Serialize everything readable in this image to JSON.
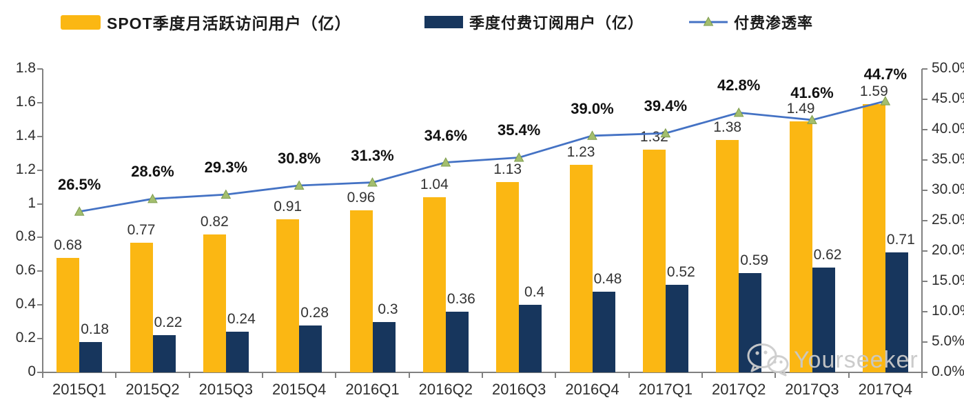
{
  "legend": {
    "items": [
      {
        "label": "SPOT季度月活跃访问用户（亿）",
        "swatch": "bar",
        "color": "#FBB713"
      },
      {
        "label": "季度付费订阅用户（亿）",
        "swatch": "bar",
        "color": "#17365D"
      },
      {
        "label": "付费渗透率",
        "swatch": "line-triangle",
        "color": "#4472C4"
      }
    ]
  },
  "watermark": {
    "text": "Yourseeker",
    "icon": "wechat-icon"
  },
  "chart_data": {
    "type": "bar",
    "subtype": "grouped bars + line on secondary axis",
    "categories": [
      "2015Q1",
      "2015Q2",
      "2015Q3",
      "2015Q4",
      "2016Q1",
      "2016Q2",
      "2016Q3",
      "2016Q4",
      "2017Q1",
      "2017Q2",
      "2017Q3",
      "2017Q4"
    ],
    "series": [
      {
        "name": "SPOT季度月活跃访问用户（亿）",
        "type": "bar",
        "axis": "left",
        "color": "#FBB713",
        "values": [
          0.68,
          0.77,
          0.82,
          0.91,
          0.96,
          1.04,
          1.13,
          1.23,
          1.32,
          1.38,
          1.49,
          1.59
        ],
        "labels": [
          "0.68",
          "0.77",
          "0.82",
          "0.91",
          "0.96",
          "1.04",
          "1.13",
          "1.23",
          "1.32",
          "1.38",
          "1.49",
          "1.59"
        ]
      },
      {
        "name": "季度付费订阅用户（亿）",
        "type": "bar",
        "axis": "left",
        "color": "#17365D",
        "values": [
          0.18,
          0.22,
          0.24,
          0.28,
          0.3,
          0.36,
          0.4,
          0.48,
          0.52,
          0.59,
          0.62,
          0.71
        ],
        "labels": [
          "0.18",
          "0.22",
          "0.24",
          "0.28",
          "0.3",
          "0.36",
          "0.4",
          "0.48",
          "0.52",
          "0.59",
          "0.62",
          "0.71"
        ]
      },
      {
        "name": "付费渗透率",
        "type": "line",
        "axis": "right",
        "color": "#4472C4",
        "marker": "triangle",
        "marker_fill": "#A3BE6E",
        "marker_stroke": "#7E9C4D",
        "values": [
          26.5,
          28.6,
          29.3,
          30.8,
          31.3,
          34.6,
          35.4,
          39.0,
          39.4,
          42.8,
          41.6,
          44.7
        ],
        "labels": [
          "26.5%",
          "28.6%",
          "29.3%",
          "30.8%",
          "31.3%",
          "34.6%",
          "35.4%",
          "39.0%",
          "39.4%",
          "42.8%",
          "41.6%",
          "44.7%"
        ]
      }
    ],
    "left_axis": {
      "min": 0,
      "max": 1.8,
      "step": 0.2,
      "ticks": [
        "0",
        "0.2",
        "0.4",
        "0.6",
        "0.8",
        "1",
        "1.2",
        "1.4",
        "1.6",
        "1.8"
      ]
    },
    "right_axis": {
      "min": 0,
      "max": 50,
      "step": 5,
      "ticks": [
        "0.0%",
        "5.0%",
        "10.0%",
        "15.0%",
        "20.0%",
        "25.0%",
        "30.0%",
        "35.0%",
        "40.0%",
        "45.0%",
        "50.0%"
      ]
    },
    "title": "",
    "xlabel": "",
    "ylabel": "",
    "grid": false,
    "legend_position": "top",
    "axis_color": "#808080",
    "label_color": "#333333",
    "pct_label_color": "#111111"
  }
}
